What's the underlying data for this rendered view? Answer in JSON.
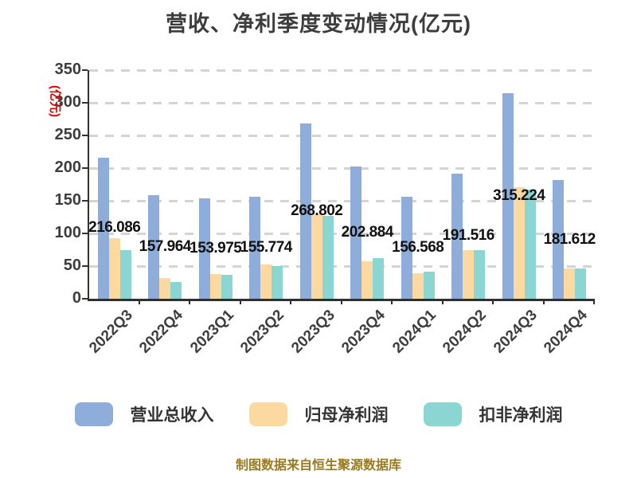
{
  "title": "营收、净利季度变动情况(亿元)",
  "footer": {
    "source_note": "制图数据来自恒生聚源数据库"
  },
  "colors": {
    "revenue": "#8FADDA",
    "net_profit": "#FBD9A0",
    "deducted_net_profit": "#8BD6D2",
    "gridline": "#D4D4D4",
    "axis": "#333333",
    "tick_text": "#3D3D3D",
    "value_label_text": "#111111",
    "unit_label_text": "#E60000",
    "footer_text": "#9B7A1E"
  },
  "chart_data": {
    "type": "bar",
    "title": "营收、净利季度变动情况(亿元)",
    "categories": [
      "2022Q3",
      "2022Q4",
      "2023Q1",
      "2023Q2",
      "2023Q3",
      "2023Q4",
      "2024Q1",
      "2024Q2",
      "2024Q3",
      "2024Q4"
    ],
    "series": [
      {
        "key": "revenue",
        "name": "营业总收入",
        "color": "#8FADDA",
        "values": [
          216.086,
          157.964,
          153.975,
          155.774,
          268.802,
          202.884,
          156.568,
          191.516,
          315.224,
          181.612
        ],
        "labels": [
          "216.086",
          "157.964",
          "153.975",
          "155.774",
          "268.802",
          "202.884",
          "156.568",
          "191.516",
          "315.224",
          "181.612"
        ]
      },
      {
        "key": "net-profit",
        "name": "归母净利润",
        "color": "#FBD9A0",
        "values": [
          93,
          32,
          38,
          53,
          129,
          57,
          39,
          74,
          171,
          46
        ]
      },
      {
        "key": "deducted-net-profit",
        "name": "扣非净利润",
        "color": "#8BD6D2",
        "values": [
          75,
          26,
          36,
          50,
          127,
          62,
          41,
          74,
          167,
          46
        ]
      }
    ],
    "xlabel": "",
    "ylabel": "(亿元)",
    "ylim": [
      0,
      350
    ],
    "ytick_step": 50,
    "grid": "horizontal-dashed",
    "legend_position": "bottom",
    "value_labels_series": "营业总收入"
  }
}
